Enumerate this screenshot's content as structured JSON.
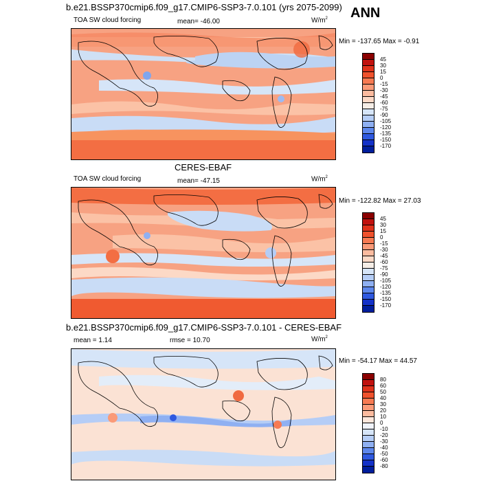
{
  "top_title": "b.e21.BSSP370cmip6.f09_g17.CMIP6-SSP3-7.0.101 (yrs 2075-2099)",
  "season": "ANN",
  "units_base": "W/m",
  "units_exp": "2",
  "panels": [
    {
      "variable": "TOA SW cloud forcing",
      "stat": "mean= -46.00",
      "minmax": "Min = -137.65 Max =  -0.91",
      "colorbar": {
        "ticks": [
          "45",
          "30",
          "15",
          "0",
          "-15",
          "-30",
          "-45",
          "-60",
          "-75",
          "-90",
          "-105",
          "-120",
          "-135",
          "-150",
          "-170"
        ],
        "colors": [
          "#8b0000",
          "#c1120f",
          "#e0321b",
          "#f0522d",
          "#f77a52",
          "#fa9a78",
          "#fcbb9f",
          "#fcd9c6",
          "#f5ede6",
          "#d6e5f8",
          "#b5cdf6",
          "#8fb0f2",
          "#5d87ec",
          "#2f59e0",
          "#1432c8",
          "#001e9c"
        ]
      }
    },
    {
      "heading": "CERES-EBAF",
      "variable": "TOA SW cloud forcing",
      "stat": "mean= -47.15",
      "minmax": "Min = -122.82 Max =  27.03",
      "colorbar": {
        "ticks": [
          "45",
          "30",
          "15",
          "0",
          "-15",
          "-30",
          "-45",
          "-60",
          "-75",
          "-90",
          "-105",
          "-120",
          "-135",
          "-150",
          "-170"
        ],
        "colors": [
          "#8b0000",
          "#c1120f",
          "#e0321b",
          "#f0522d",
          "#f77a52",
          "#fa9a78",
          "#fcbb9f",
          "#fcd9c6",
          "#f5ede6",
          "#d6e5f8",
          "#b5cdf6",
          "#8fb0f2",
          "#5d87ec",
          "#2f59e0",
          "#1432c8",
          "#001e9c"
        ]
      }
    },
    {
      "heading": "b.e21.BSSP370cmip6.f09_g17.CMIP6-SSP3-7.0.101 - CERES-EBAF",
      "stat_left": "mean =   1.14",
      "stat_mid": "rmse =  10.70",
      "minmax": "Min = -54.17 Max =  44.57",
      "colorbar": {
        "ticks": [
          "80",
          "60",
          "50",
          "40",
          "30",
          "20",
          "10",
          "0",
          "-10",
          "-20",
          "-30",
          "-40",
          "-50",
          "-60",
          "-80"
        ],
        "colors": [
          "#8b0000",
          "#c1120f",
          "#e0321b",
          "#f0522d",
          "#f77a52",
          "#fa9a78",
          "#fcbb9f",
          "#fce7dc",
          "#f0f3fb",
          "#d6e5f8",
          "#b5cdf6",
          "#8fb0f2",
          "#5d87ec",
          "#2f59e0",
          "#1432c8",
          "#001e9c"
        ]
      }
    }
  ]
}
